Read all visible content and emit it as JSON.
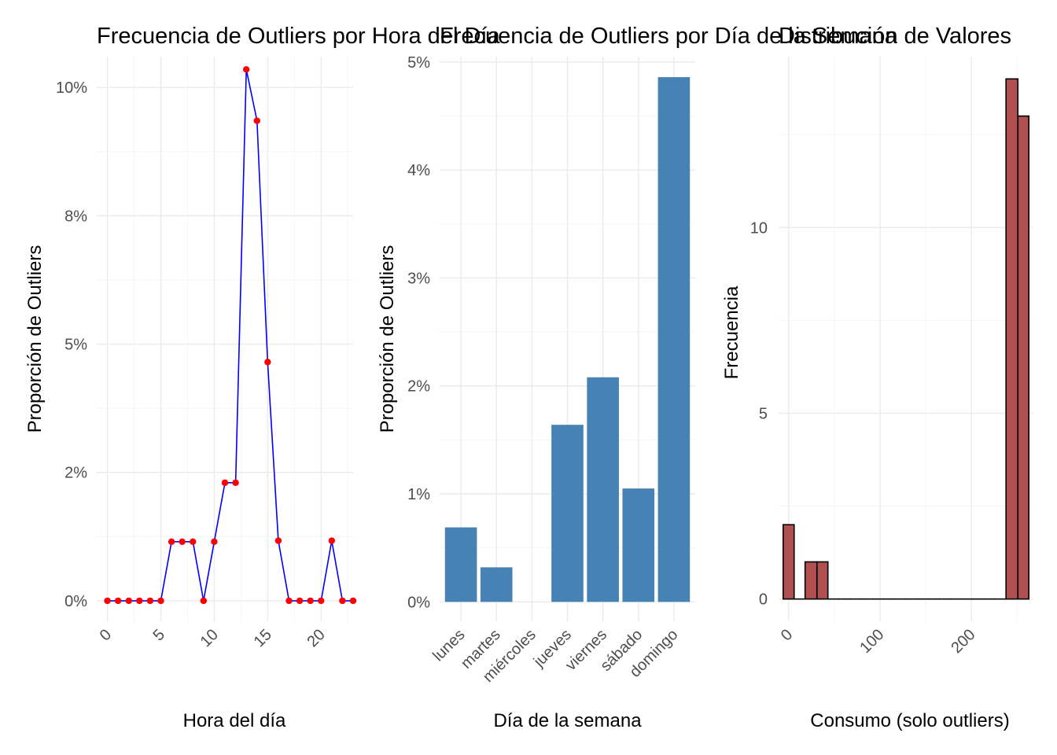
{
  "chart_data": [
    {
      "type": "line",
      "title": "Frecuencia de Outliers por Hora del Día",
      "xlabel": "Hora del día",
      "ylabel": "Proporción de Outliers",
      "xlim": [
        -1,
        23
      ],
      "ylim": [
        -0.004,
        0.106
      ],
      "x_ticks": [
        0,
        5,
        10,
        15,
        20
      ],
      "y_ticks": [
        0,
        0.025,
        0.05,
        0.075,
        0.1
      ],
      "y_tick_labels": [
        "0%",
        "2%",
        "5%",
        "8%",
        "10%"
      ],
      "grid": true,
      "line_color": "#0000ff",
      "point_color": "#ff0000",
      "x": [
        0,
        1,
        2,
        3,
        4,
        5,
        6,
        7,
        8,
        9,
        10,
        11,
        12,
        13,
        14,
        15,
        16,
        17,
        18,
        19,
        20,
        21,
        22,
        23
      ],
      "values": [
        0,
        0,
        0,
        0,
        0,
        0,
        0.0115,
        0.0115,
        0.0115,
        0,
        0.0115,
        0.023,
        0.023,
        0.1035,
        0.0935,
        0.0465,
        0.0117,
        0,
        0,
        0,
        0,
        0.0117,
        0,
        0
      ]
    },
    {
      "type": "bar",
      "title": "Frecuencia de Outliers por Día de la Semana",
      "xlabel": "Día de la semana",
      "ylabel": "Proporción de Outliers",
      "categories": [
        "lunes",
        "martes",
        "miércoles",
        "jueves",
        "viernes",
        "sábado",
        "domingo"
      ],
      "values": [
        0.0069,
        0.0032,
        0,
        0.0164,
        0.0208,
        0.0105,
        0.0486
      ],
      "ylim": [
        -0.0018,
        0.0505
      ],
      "y_ticks": [
        0,
        0.01,
        0.02,
        0.03,
        0.04,
        0.05
      ],
      "y_tick_labels": [
        "0%",
        "1%",
        "2%",
        "3%",
        "4%",
        "5%"
      ],
      "grid": true,
      "bar_color": "#4682b4"
    },
    {
      "type": "bar",
      "title": "Distribución de Valores",
      "xlabel": "Consumo (solo outliers)",
      "ylabel": "Frecuencia",
      "bins": [
        {
          "x0": -6,
          "x1": 6,
          "count": 2
        },
        {
          "x0": 6,
          "x1": 18,
          "count": 0
        },
        {
          "x0": 18,
          "x1": 31,
          "count": 1
        },
        {
          "x0": 31,
          "x1": 43,
          "count": 1
        },
        {
          "x0": 43,
          "x1": 55,
          "count": 0
        },
        {
          "x0": 55,
          "x1": 67,
          "count": 0
        },
        {
          "x0": 67,
          "x1": 79,
          "count": 0
        },
        {
          "x0": 79,
          "x1": 92,
          "count": 0
        },
        {
          "x0": 92,
          "x1": 104,
          "count": 0
        },
        {
          "x0": 104,
          "x1": 116,
          "count": 0
        },
        {
          "x0": 116,
          "x1": 128,
          "count": 0
        },
        {
          "x0": 128,
          "x1": 141,
          "count": 0
        },
        {
          "x0": 141,
          "x1": 153,
          "count": 0
        },
        {
          "x0": 153,
          "x1": 165,
          "count": 0
        },
        {
          "x0": 165,
          "x1": 177,
          "count": 0
        },
        {
          "x0": 177,
          "x1": 189,
          "count": 0
        },
        {
          "x0": 189,
          "x1": 202,
          "count": 0
        },
        {
          "x0": 202,
          "x1": 214,
          "count": 0
        },
        {
          "x0": 214,
          "x1": 226,
          "count": 0
        },
        {
          "x0": 226,
          "x1": 238,
          "count": 0
        },
        {
          "x0": 238,
          "x1": 251,
          "count": 14
        },
        {
          "x0": 251,
          "x1": 263,
          "count": 13
        }
      ],
      "xlim": [
        -11,
        268
      ],
      "ylim": [
        -0.6,
        14.6
      ],
      "x_ticks": [
        0,
        100,
        200
      ],
      "y_ticks": [
        0,
        5,
        10
      ],
      "grid": true,
      "bar_fill": "#b05050",
      "bar_outline": "#000000"
    }
  ]
}
